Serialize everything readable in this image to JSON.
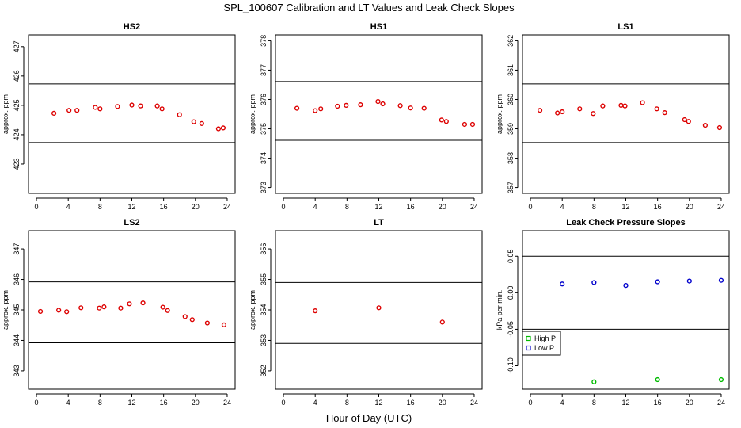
{
  "figure": {
    "title": "SPL_100607  Calibration and LT Values and Leak Check Slopes",
    "xlabel": "Hour of Day (UTC)"
  },
  "chart_data": [
    {
      "type": "scatter",
      "title": "HS2",
      "ylabel": "approx. ppm",
      "xlim": [
        -1,
        25
      ],
      "ylim": [
        422.0,
        427.4
      ],
      "xticks": [
        0,
        4,
        8,
        12,
        16,
        20,
        24
      ],
      "yticks": [
        423,
        424,
        425,
        426,
        427
      ],
      "hlines": [
        425.73,
        423.73
      ],
      "series": [
        {
          "color": "#dd0000",
          "x": [
            2.2,
            4.1,
            5.1,
            7.4,
            8.0,
            10.2,
            12.0,
            13.1,
            15.2,
            15.8,
            18.0,
            19.8,
            20.8,
            22.9,
            23.5
          ],
          "y": [
            424.73,
            424.83,
            424.83,
            424.93,
            424.88,
            424.96,
            425.01,
            424.98,
            424.98,
            424.88,
            424.68,
            424.44,
            424.38,
            424.2,
            424.23
          ]
        }
      ]
    },
    {
      "type": "scatter",
      "title": "HS1",
      "ylabel": "approx. ppm",
      "xlim": [
        -1,
        25
      ],
      "ylim": [
        372.8,
        378.2
      ],
      "xticks": [
        0,
        4,
        8,
        12,
        16,
        20,
        24
      ],
      "yticks": [
        373,
        374,
        375,
        376,
        377,
        378
      ],
      "hlines": [
        376.61,
        374.61
      ],
      "series": [
        {
          "color": "#dd0000",
          "x": [
            1.7,
            4.0,
            4.7,
            6.8,
            7.9,
            9.7,
            11.9,
            12.5,
            14.7,
            16.0,
            17.7,
            19.9,
            20.5,
            22.8,
            23.8
          ],
          "y": [
            375.7,
            375.62,
            375.68,
            375.77,
            375.8,
            375.82,
            375.93,
            375.85,
            375.79,
            375.71,
            375.7,
            375.3,
            375.25,
            375.15,
            375.15
          ]
        }
      ]
    },
    {
      "type": "scatter",
      "title": "LS1",
      "ylabel": "approx. ppm",
      "xlim": [
        -1,
        25
      ],
      "ylim": [
        356.8,
        362.2
      ],
      "xticks": [
        0,
        4,
        8,
        12,
        16,
        20,
        24
      ],
      "yticks": [
        357,
        358,
        359,
        360,
        361,
        362
      ],
      "hlines": [
        360.53,
        358.53
      ],
      "series": [
        {
          "color": "#dd0000",
          "x": [
            1.2,
            3.4,
            4.0,
            6.2,
            7.9,
            9.1,
            11.4,
            11.9,
            14.1,
            15.9,
            16.9,
            19.4,
            19.9,
            22.0,
            23.8
          ],
          "y": [
            359.63,
            359.54,
            359.58,
            359.68,
            359.52,
            359.78,
            359.8,
            359.78,
            359.89,
            359.68,
            359.55,
            359.31,
            359.25,
            359.12,
            359.04
          ]
        }
      ]
    },
    {
      "type": "scatter",
      "title": "LS2",
      "ylabel": "approx. ppm",
      "xlim": [
        -1,
        25
      ],
      "ylim": [
        342.4,
        347.6
      ],
      "xticks": [
        0,
        4,
        8,
        12,
        16,
        20,
        24
      ],
      "yticks": [
        343,
        344,
        345,
        346,
        347
      ],
      "hlines": [
        345.92,
        343.92
      ],
      "series": [
        {
          "color": "#dd0000",
          "x": [
            0.5,
            2.8,
            3.8,
            5.6,
            7.9,
            8.5,
            10.6,
            11.7,
            13.4,
            15.9,
            16.5,
            18.7,
            19.6,
            21.5,
            23.6
          ],
          "y": [
            344.95,
            344.99,
            344.94,
            345.07,
            345.06,
            345.1,
            345.06,
            345.2,
            345.23,
            345.09,
            344.98,
            344.78,
            344.68,
            344.57,
            344.51
          ]
        }
      ]
    },
    {
      "type": "scatter",
      "title": "LT",
      "ylabel": "approx. ppm",
      "xlim": [
        -1,
        25
      ],
      "ylim": [
        351.4,
        356.6
      ],
      "xticks": [
        0,
        4,
        8,
        12,
        16,
        20,
        24
      ],
      "yticks": [
        352,
        353,
        354,
        355,
        356
      ],
      "hlines": [
        354.9,
        352.9
      ],
      "series": [
        {
          "color": "#dd0000",
          "x": [
            4.0,
            12.0,
            20.0
          ],
          "y": [
            353.97,
            354.07,
            353.6
          ]
        }
      ]
    },
    {
      "type": "scatter",
      "title": "Leak Check Pressure Slopes",
      "ylabel": "kPa per min.",
      "xlim": [
        -1,
        25
      ],
      "ylim": [
        -0.132,
        0.085
      ],
      "xticks": [
        0,
        4,
        8,
        12,
        16,
        20,
        24
      ],
      "yticks": [
        -0.1,
        -0.05,
        0.0,
        0.05
      ],
      "ytick_labels": [
        "-0.10",
        "-0.05",
        "0.00",
        "0.05"
      ],
      "hlines": [
        0.05,
        -0.05
      ],
      "legend": {
        "placement": "left",
        "entries": [
          "High P",
          "Low P"
        ]
      },
      "series": [
        {
          "name": "High P",
          "color": "#00bb00",
          "x": [
            8,
            16,
            24
          ],
          "y": [
            -0.122,
            -0.119,
            -0.119
          ]
        },
        {
          "name": "Low P",
          "color": "#0000cc",
          "x": [
            4,
            8,
            12,
            16,
            20,
            24
          ],
          "y": [
            0.012,
            0.014,
            0.01,
            0.015,
            0.016,
            0.017
          ]
        }
      ]
    }
  ]
}
